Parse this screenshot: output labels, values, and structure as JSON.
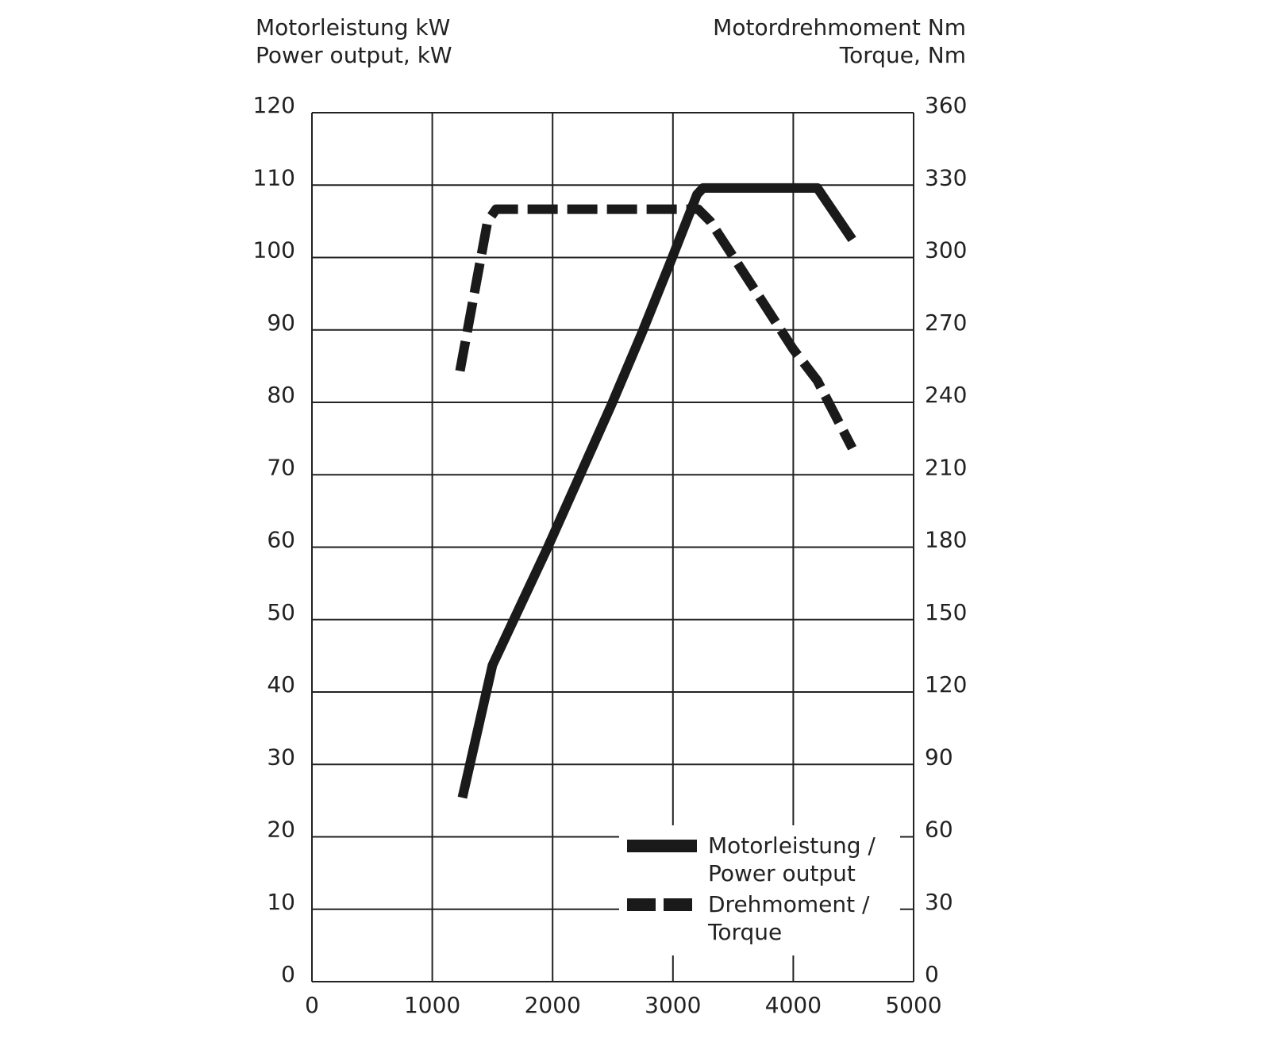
{
  "chart_data": {
    "type": "line",
    "ylabel": [
      "Motorleistung kW",
      "Power output, kW"
    ],
    "y2label": [
      "Motordrehmoment Nm",
      "Torque, Nm"
    ],
    "xlim": [
      0,
      5000
    ],
    "xticks": [
      0,
      1000,
      2000,
      3000,
      4000,
      5000
    ],
    "ylim": [
      0,
      120
    ],
    "yticks": [
      0,
      10,
      20,
      30,
      40,
      50,
      60,
      70,
      80,
      90,
      100,
      110,
      120
    ],
    "y2lim": [
      0,
      360
    ],
    "y2ticks": [
      0,
      30,
      60,
      90,
      120,
      150,
      180,
      210,
      240,
      270,
      300,
      330,
      360
    ],
    "grid": true,
    "legend": "lower right",
    "series": [
      {
        "name": "Motorleistung / Power output",
        "color": "#1a1a1a",
        "style": "solid",
        "x": [
          1250,
          1500,
          1960,
          2490,
          2740,
          2980,
          3200,
          3250,
          4200,
          4490
        ],
        "values": [
          25.4,
          43.7,
          60,
          79.7,
          89.5,
          99.4,
          108.7,
          109.6,
          109.6,
          102.5
        ]
      },
      {
        "name": "Drehmoment / Torque",
        "color": "#1a1a1a",
        "style": "dashed",
        "axis": "y2",
        "x": [
          1230,
          1460,
          1530,
          3210,
          3310,
          3740,
          4000,
          4200,
          4490
        ],
        "values": [
          253,
          315,
          320,
          320,
          315,
          282,
          262,
          249,
          221
        ]
      }
    ]
  }
}
